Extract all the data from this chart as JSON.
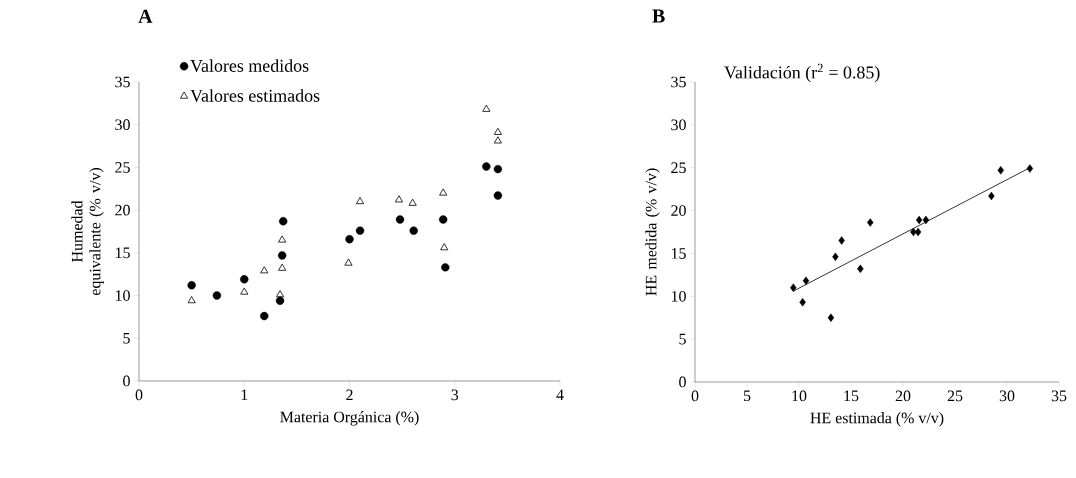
{
  "chart_data": [
    {
      "type": "scatter",
      "title": "A",
      "xlabel": "Materia Orgánica (%)",
      "ylabel": "Humedad equivalente (% v/v)",
      "xlim": [
        0,
        4
      ],
      "xticks": [
        0,
        1,
        2,
        3,
        4
      ],
      "ylim": [
        0,
        35
      ],
      "yticks": [
        0,
        5,
        10,
        15,
        20,
        25,
        30,
        35
      ],
      "legend": "top left",
      "series": [
        {
          "name": "Valores medidos",
          "color": "#000000",
          "marker": "circle",
          "x": [
            0.5,
            0.74,
            1.0,
            1.19,
            1.34,
            1.36,
            1.37,
            2.0,
            2.1,
            2.48,
            2.61,
            2.89,
            2.91,
            3.3,
            3.41,
            3.41
          ],
          "values": [
            11.2,
            10.0,
            11.9,
            7.6,
            9.4,
            14.7,
            18.7,
            16.6,
            17.6,
            18.9,
            17.6,
            18.9,
            13.3,
            25.1,
            24.8,
            21.7
          ]
        },
        {
          "name": "Valores estimados",
          "color": "#000000",
          "marker": "triangle",
          "x": [
            0.5,
            1.0,
            1.19,
            1.34,
            1.36,
            1.36,
            1.99,
            2.1,
            2.47,
            2.6,
            2.89,
            2.9,
            3.3,
            3.41,
            3.41
          ],
          "values": [
            9.4,
            10.4,
            12.9,
            10.1,
            13.2,
            16.5,
            13.8,
            21.0,
            21.2,
            20.8,
            22.0,
            15.6,
            31.8,
            29.1,
            28.1
          ]
        }
      ]
    },
    {
      "type": "scatter",
      "title": "B",
      "xlabel": "HE estimada (% v/v)",
      "ylabel": "HE medida (% v/v)",
      "xlim": [
        0,
        35
      ],
      "xticks": [
        0,
        5,
        10,
        15,
        20,
        25,
        30,
        35
      ],
      "ylim": [
        0,
        35
      ],
      "yticks": [
        0,
        5,
        10,
        15,
        20,
        25,
        30,
        35
      ],
      "annotations": [
        "Validación (r$^{2}$ = 0.85)"
      ],
      "series": [
        {
          "color": "#000000",
          "marker": "diamond",
          "x": [
            9.45,
            10.35,
            10.67,
            13.07,
            13.5,
            14.1,
            15.9,
            16.85,
            21.0,
            21.45,
            21.55,
            22.2,
            28.5,
            29.4,
            32.2
          ],
          "values": [
            11.0,
            9.3,
            11.8,
            7.5,
            14.6,
            16.5,
            13.2,
            18.6,
            17.5,
            17.5,
            18.9,
            18.9,
            21.7,
            24.7,
            24.9
          ]
        },
        {
          "type": "line",
          "color": "#000000",
          "marker": "none",
          "x": [
            9.45,
            32.2
          ],
          "values": [
            10.6,
            25.0
          ]
        }
      ]
    }
  ]
}
